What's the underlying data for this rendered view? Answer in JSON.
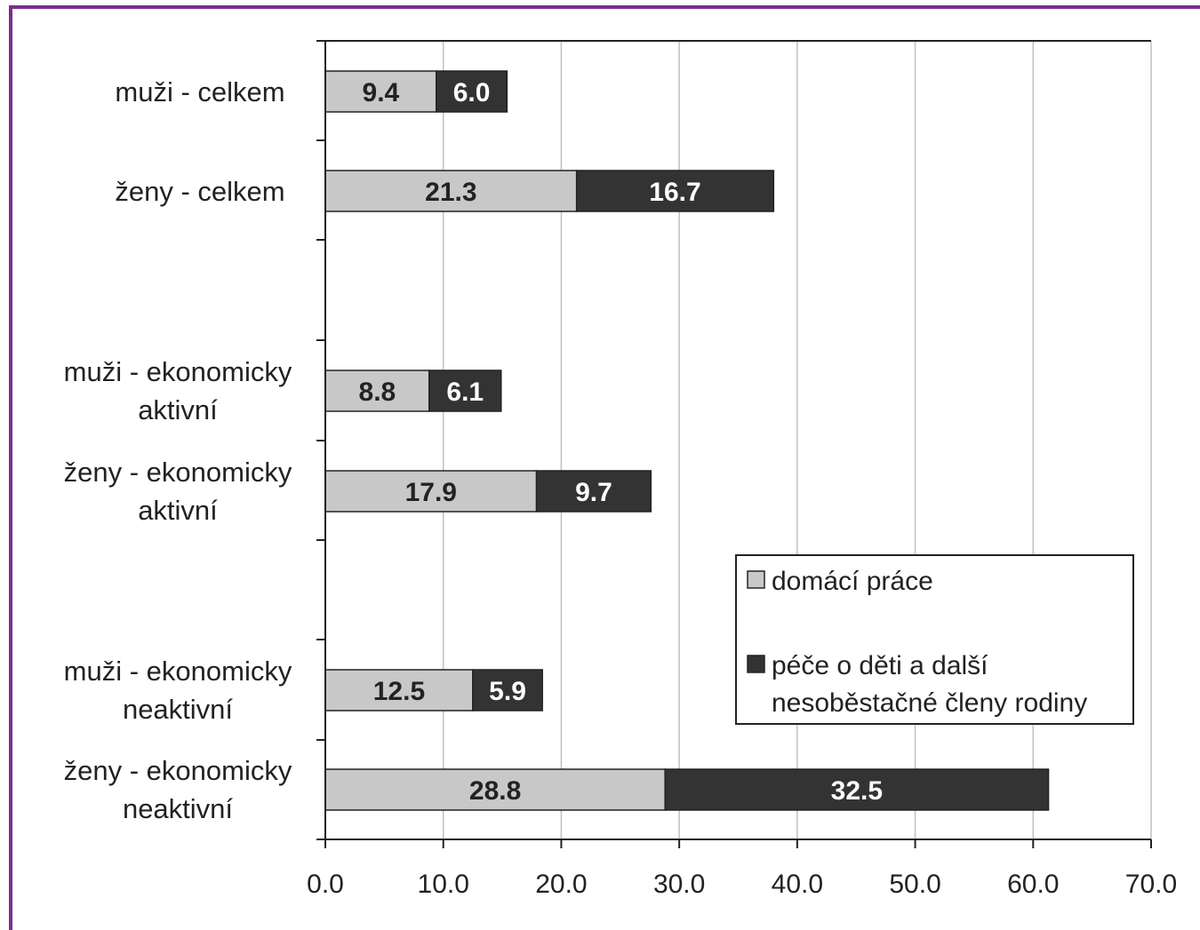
{
  "colors": {
    "frame": "#7b2d8e",
    "series_light": "#c8c8c8",
    "series_dark": "#333333",
    "grid": "#c0c0c0",
    "axis": "#222222"
  },
  "chart_data": {
    "type": "bar",
    "orientation": "horizontal",
    "stacked": true,
    "categories": [
      [
        "muži - celkem"
      ],
      [
        "ženy - celkem"
      ],
      [
        "muži - ekonomicky",
        "aktivní"
      ],
      [
        "ženy - ekonomicky",
        "aktivní"
      ],
      [
        "muži - ekonomicky",
        "neaktivní"
      ],
      [
        "ženy - ekonomicky",
        "neaktivní"
      ]
    ],
    "series": [
      {
        "name": "domácí práce",
        "values": [
          9.4,
          21.3,
          8.8,
          17.9,
          12.5,
          28.8
        ]
      },
      {
        "name": "péče o děti a další nesoběstačné členy rodiny",
        "values": [
          6.0,
          16.7,
          6.1,
          9.7,
          5.9,
          32.5
        ]
      }
    ],
    "data_labels": [
      [
        "9.4",
        "21.3",
        "8.8",
        "17.9",
        "12.5",
        "28.8"
      ],
      [
        "6.0",
        "16.7",
        "6.1",
        "9.7",
        "5.9",
        "32.5"
      ]
    ],
    "legend_lines": [
      [
        "domácí práce"
      ],
      [
        "péče o děti a další",
        "nesoběstačné členy rodiny"
      ]
    ],
    "xlim": [
      0,
      70
    ],
    "xticks": [
      0,
      10,
      20,
      30,
      40,
      50,
      60,
      70
    ],
    "xtick_labels": [
      "0.0",
      "10.0",
      "20.0",
      "30.0",
      "40.0",
      "50.0",
      "60.0",
      "70.0"
    ],
    "grid": true,
    "legend_position": "lower-right"
  }
}
